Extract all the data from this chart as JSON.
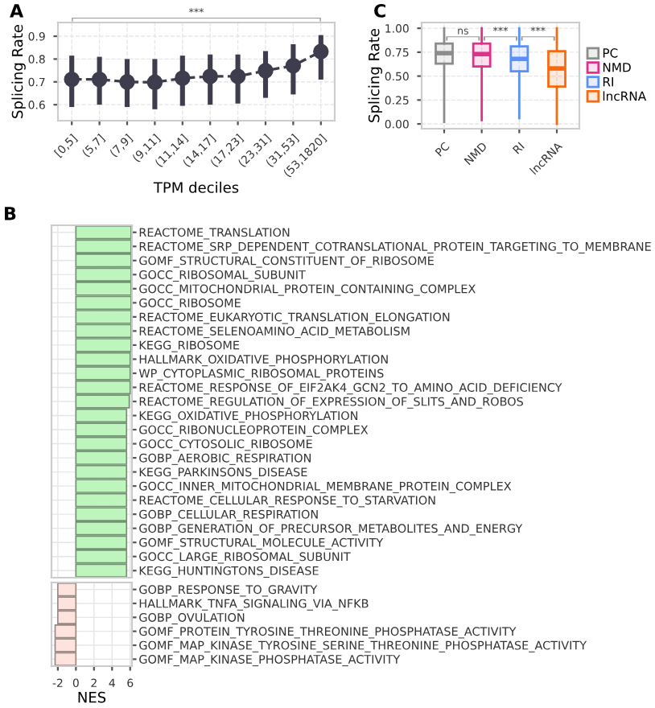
{
  "chart_data": [
    {
      "type": "line",
      "title": "A",
      "xlabel": "TPM deciles",
      "ylabel": "Splicing Rate",
      "categories": [
        "[0,5]",
        "(5,7]",
        "(7,9]",
        "(9,11]",
        "(11,14]",
        "(14,17]",
        "(17,23]",
        "(23,31]",
        "(31,53]",
        "(53,1820]"
      ],
      "series": [
        {
          "color": "#3d3d4d",
          "values": [
            0.711,
            0.711,
            0.7,
            0.698,
            0.716,
            0.724,
            0.724,
            0.749,
            0.771,
            0.833
          ],
          "errors": [
            [
              0.59,
              0.815
            ],
            [
              0.6,
              0.81
            ],
            [
              0.59,
              0.8
            ],
            [
              0.58,
              0.8
            ],
            [
              0.595,
              0.815
            ],
            [
              0.6,
              0.82
            ],
            [
              0.605,
              0.82
            ],
            [
              0.63,
              0.835
            ],
            [
              0.645,
              0.865
            ],
            [
              0.71,
              0.905
            ]
          ]
        }
      ],
      "ylim": [
        0.53,
        0.96
      ],
      "yticks": [
        0.6,
        0.7,
        0.8,
        0.9
      ],
      "grid": true,
      "marker": "circle",
      "line_style": "dashed",
      "legend": false,
      "annotations": [
        "***"
      ]
    },
    {
      "type": "box",
      "title": "C",
      "ylabel": "Splicing Rate",
      "categories": [
        "PC",
        "NMD",
        "RI",
        "lncRNA"
      ],
      "series": [
        {
          "name": "PC",
          "color": "#8c8c8c",
          "boxes": [
            {
              "low": 0.02,
              "q1": 0.63,
              "median": 0.74,
              "q3": 0.84,
              "high": 1.0
            },
            null,
            null,
            null
          ]
        },
        {
          "name": "NMD",
          "color": "#e0308a",
          "boxes": [
            null,
            {
              "low": 0.04,
              "q1": 0.6,
              "median": 0.73,
              "q3": 0.84,
              "high": 1.0
            },
            null,
            null
          ]
        },
        {
          "name": "RI",
          "color": "#5b8ff9",
          "boxes": [
            null,
            null,
            {
              "low": 0.06,
              "q1": 0.55,
              "median": 0.68,
              "q3": 0.81,
              "high": 1.0
            },
            null
          ]
        },
        {
          "name": "lncRNA",
          "color": "#f96a10",
          "boxes": [
            null,
            null,
            null,
            {
              "low": 0.0,
              "q1": 0.39,
              "median": 0.58,
              "q3": 0.76,
              "high": 1.0
            }
          ]
        }
      ],
      "ylim": [
        -0.05,
        1.06
      ],
      "yticks": [
        {
          "value": 0,
          "label": "0.00"
        },
        {
          "value": 0.25,
          "label": "0.25"
        },
        {
          "value": 0.5,
          "label": "0.50"
        },
        {
          "value": 0.75,
          "label": "0.75"
        },
        {
          "value": 1,
          "label": "1.00"
        }
      ],
      "grid": true,
      "legend": "right",
      "annotations": [
        "ns",
        "***",
        "***"
      ]
    },
    {
      "type": "bar",
      "title": "B",
      "orientation": "horizontal",
      "categories": [
        "REACTOME_TRANSLATION",
        "REACTOME_SRP_DEPENDENT_COTRANSLATIONAL_PROTEIN_TARGETING_TO_MEMBRANE",
        "GOMF_STRUCTURAL_CONSTITUENT_OF_RIBOSOME",
        "GOCC_RIBOSOMAL_SUBUNIT",
        "GOCC_MITOCHONDRIAL_PROTEIN_CONTAINING_COMPLEX",
        "GOCC_RIBOSOME",
        "REACTOME_EUKARYOTIC_TRANSLATION_ELONGATION",
        "REACTOME_SELENOAMINO_ACID_METABOLISM",
        "KEGG_RIBOSOME",
        "HALLMARK_OXIDATIVE_PHOSPHORYLATION",
        "WP_CYTOPLASMIC_RIBOSOMAL_PROTEINS",
        "REACTOME_RESPONSE_OF_EIF2AK4_GCN2_TO_AMINO_ACID_DEFICIENCY",
        "REACTOME_REGULATION_OF_EXPRESSION_OF_SLITS_AND_ROBOS",
        "KEGG_OXIDATIVE_PHOSPHORYLATION",
        "GOCC_RIBONUCLEOPROTEIN_COMPLEX",
        "GOCC_CYTOSOLIC_RIBOSOME",
        "GOBP_AEROBIC_RESPIRATION",
        "KEGG_PARKINSONS_DISEASE",
        "GOCC_INNER_MITOCHONDRIAL_MEMBRANE_PROTEIN_COMPLEX",
        "REACTOME_CELLULAR_RESPONSE_TO_STARVATION",
        "GOBP_CELLULAR_RESPIRATION",
        "GOBP_GENERATION_OF_PRECURSOR_METABOLITES_AND_ENERGY",
        "GOMF_STRUCTURAL_MOLECULE_ACTIVITY",
        "GOCC_LARGE_RIBOSOMAL_SUBUNIT",
        "KEGG_HUNTINGTONS_DISEASE"
      ],
      "series": [
        {
          "color": "#bdf5bd",
          "values": [
            6.1,
            6.1,
            6.1,
            6.1,
            6.1,
            6.1,
            6.1,
            6.1,
            6.1,
            6.0,
            6.0,
            6.0,
            5.9,
            5.6,
            5.6,
            5.6,
            5.6,
            5.6,
            5.6,
            5.6,
            5.6,
            5.6,
            5.6,
            5.6,
            5.6
          ]
        }
      ],
      "xlim": [
        -2.7,
        6.2
      ],
      "xticks": [
        -2,
        0,
        2,
        4,
        6
      ],
      "grid": true,
      "tick_labels": "y",
      "legend": false
    },
    {
      "type": "bar",
      "orientation": "horizontal",
      "xlabel": "NES",
      "categories": [
        "GOBP_RESPONSE_TO_GRAVITY",
        "HALLMARK_TNFA_SIGNALING_VIA_NFKB",
        "GOBP_OVULATION",
        "GOMF_PROTEIN_TYROSINE_THREONINE_PHOSPHATASE_ACTIVITY",
        "GOMF_MAP_KINASE_TYROSINE_SERINE_THREONINE_PHOSPHATASE_ACTIVITY",
        "GOMF_MAP_KINASE_PHOSPHATASE_ACTIVITY"
      ],
      "series": [
        {
          "color": "#fde3dc",
          "values": [
            -2.0,
            -2.0,
            -2.0,
            -2.3,
            -2.3,
            -2.3
          ]
        }
      ],
      "xlim": [
        -2.7,
        6.2
      ],
      "xticks": [
        {
          "value": -2,
          "label": "-2"
        },
        0,
        2,
        4,
        6
      ],
      "grid": true,
      "legend": false
    }
  ]
}
